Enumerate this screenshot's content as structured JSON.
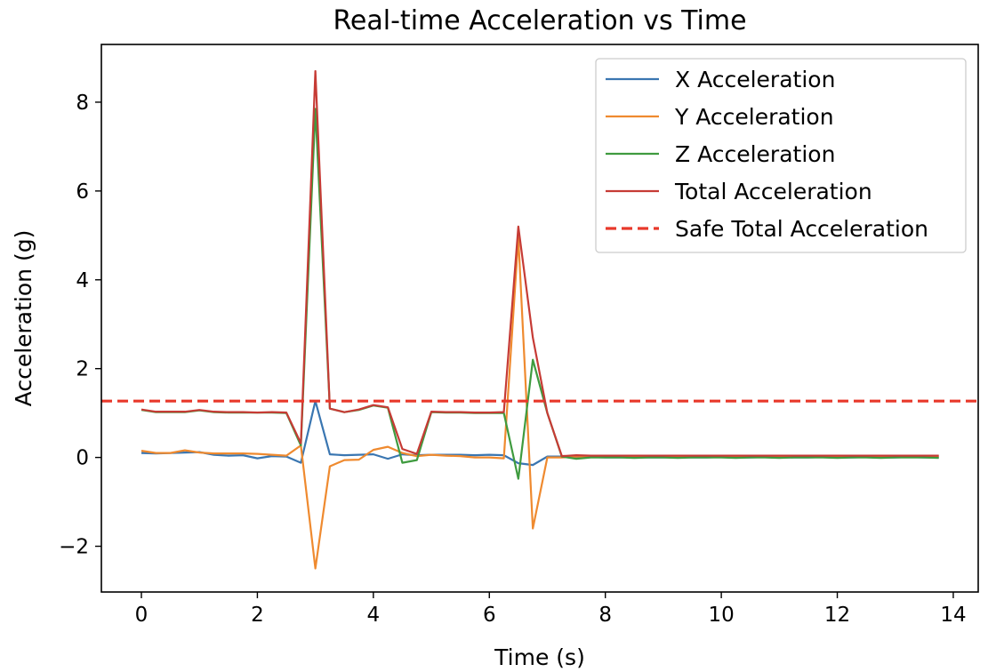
{
  "chart_data": {
    "type": "line",
    "title": "Real-time Acceleration vs Time",
    "xlabel": "Time (s)",
    "ylabel": "Acceleration (g)",
    "xlim": [
      -0.69,
      14.43
    ],
    "ylim": [
      -3.03,
      9.3
    ],
    "xticks": [
      0,
      2,
      4,
      6,
      8,
      10,
      12,
      14
    ],
    "yticks": [
      -2,
      0,
      2,
      4,
      6,
      8
    ],
    "xtick_labels": [
      "0",
      "2",
      "4",
      "6",
      "8",
      "10",
      "12",
      "14"
    ],
    "ytick_labels": [
      "−2",
      "0",
      "2",
      "4",
      "6",
      "8"
    ],
    "grid": false,
    "legend_position": "top-right",
    "x": [
      0,
      0.25,
      0.5,
      0.75,
      1.0,
      1.25,
      1.5,
      1.75,
      2.0,
      2.25,
      2.5,
      2.75,
      3.0,
      3.25,
      3.5,
      3.75,
      4.0,
      4.25,
      4.5,
      4.75,
      5.0,
      5.25,
      5.5,
      5.75,
      6.0,
      6.25,
      6.5,
      6.75,
      7.0,
      7.25,
      7.5,
      7.75,
      8.0,
      8.25,
      8.5,
      8.75,
      9.0,
      9.25,
      9.5,
      9.75,
      10.0,
      10.25,
      10.5,
      10.75,
      11.0,
      11.25,
      11.5,
      11.75,
      12.0,
      12.25,
      12.5,
      12.75,
      13.0,
      13.25,
      13.5,
      13.75
    ],
    "series": [
      {
        "name": "X Acceleration",
        "color": "#3a76b1",
        "style": "solid",
        "values": [
          0.1,
          0.09,
          0.1,
          0.11,
          0.12,
          0.06,
          0.04,
          0.05,
          -0.02,
          0.03,
          0.02,
          -0.12,
          1.27,
          0.07,
          0.05,
          0.06,
          0.07,
          -0.03,
          0.07,
          0.05,
          0.06,
          0.06,
          0.06,
          0.05,
          0.06,
          0.05,
          -0.13,
          -0.17,
          0.02,
          0.02,
          0.01,
          0.01,
          0.0,
          0.0,
          0.01,
          0.0,
          0.0,
          0.01,
          0.0,
          0.0,
          0.01,
          0.0,
          0.0,
          0.01,
          0.0,
          0.0,
          0.0,
          0.01,
          0.0,
          0.0,
          0.01,
          0.0,
          0.0,
          0.01,
          0.0,
          0.0
        ]
      },
      {
        "name": "Y Acceleration",
        "color": "#ef8a2f",
        "style": "solid",
        "values": [
          0.15,
          0.1,
          0.1,
          0.16,
          0.11,
          0.09,
          0.09,
          0.09,
          0.08,
          0.06,
          0.04,
          0.27,
          -2.5,
          -0.2,
          -0.06,
          -0.05,
          0.17,
          0.24,
          0.1,
          0.03,
          0.06,
          0.04,
          0.03,
          0.0,
          0.0,
          -0.02,
          4.95,
          -1.6,
          0.0,
          0.0,
          0.02,
          0.03,
          0.02,
          0.02,
          0.02,
          0.03,
          0.02,
          0.02,
          0.03,
          0.02,
          0.02,
          0.03,
          0.02,
          0.02,
          0.02,
          0.03,
          0.02,
          0.02,
          0.03,
          0.02,
          0.02,
          0.02,
          0.03,
          0.02,
          0.02,
          0.03
        ]
      },
      {
        "name": "Z Acceleration",
        "color": "#3f9b3f",
        "style": "solid",
        "values": [
          1.07,
          1.02,
          1.02,
          1.02,
          1.06,
          1.02,
          1.01,
          1.01,
          1.01,
          1.01,
          1.0,
          0.27,
          7.85,
          1.1,
          1.02,
          1.07,
          1.17,
          1.12,
          -0.12,
          -0.06,
          1.02,
          1.01,
          1.01,
          1.0,
          1.0,
          1.0,
          -0.48,
          2.2,
          1.0,
          0.02,
          -0.03,
          0.0,
          0.0,
          0.0,
          -0.01,
          0.0,
          0.0,
          -0.01,
          0.0,
          0.0,
          0.0,
          -0.01,
          0.0,
          0.0,
          -0.01,
          0.0,
          0.0,
          0.0,
          -0.01,
          0.0,
          0.0,
          -0.01,
          0.0,
          0.0,
          0.0,
          -0.01
        ]
      },
      {
        "name": "Total Acceleration",
        "color": "#c63b35",
        "style": "solid",
        "values": [
          1.08,
          1.03,
          1.03,
          1.03,
          1.07,
          1.03,
          1.02,
          1.02,
          1.01,
          1.02,
          1.01,
          0.32,
          8.7,
          1.1,
          1.02,
          1.08,
          1.18,
          1.13,
          0.19,
          0.08,
          1.03,
          1.02,
          1.02,
          1.01,
          1.01,
          1.02,
          5.2,
          2.7,
          1.0,
          0.03,
          0.05,
          0.04,
          0.04,
          0.04,
          0.04,
          0.04,
          0.04,
          0.04,
          0.04,
          0.04,
          0.04,
          0.04,
          0.04,
          0.04,
          0.04,
          0.04,
          0.04,
          0.04,
          0.04,
          0.04,
          0.04,
          0.04,
          0.04,
          0.04,
          0.04,
          0.04
        ]
      }
    ],
    "reference_lines": [
      {
        "name": "Safe Total Acceleration",
        "y": 1.27,
        "color": "#e8392b",
        "style": "dashed"
      }
    ]
  }
}
